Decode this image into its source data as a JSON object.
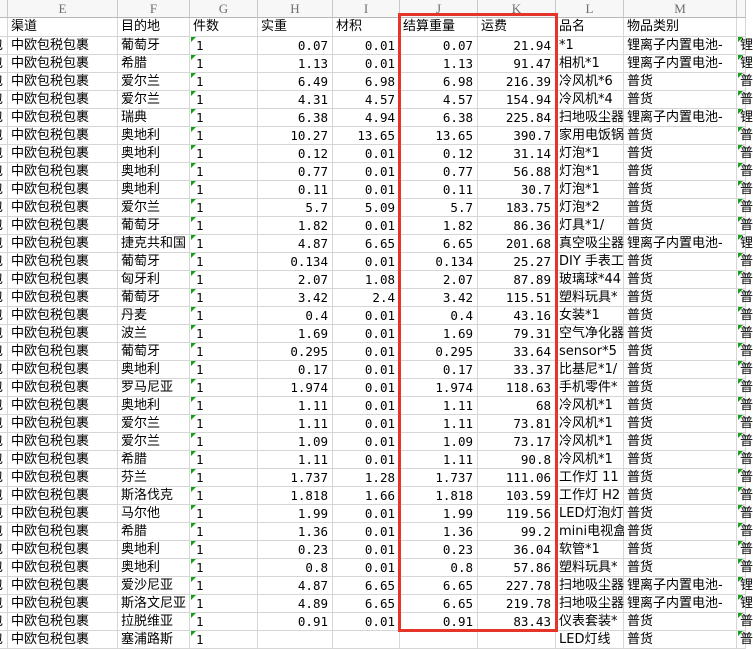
{
  "columns": {
    "letters": [
      "",
      "E",
      "F",
      "G",
      "H",
      "I",
      "J",
      "K",
      "L",
      "M",
      ""
    ]
  },
  "headers": {
    "channel": "渠道",
    "destination": "目的地",
    "quantity": "件数",
    "actual_weight": "实重",
    "volume": "材积",
    "settlement_weight": "结算重量",
    "freight": "运费",
    "product_name": "品名",
    "item_category": "物品类别"
  },
  "left_clipped_fragment": "包",
  "markers": {
    "triangle_meaning": "number-stored-as-text warning",
    "triangle_color": "#16a016"
  },
  "highlight": {
    "columns": "J-K",
    "color": "#e5342a"
  },
  "rows": [
    [
      "中欧包税包裹",
      "葡萄牙",
      "1",
      "0.07",
      "0.01",
      "0.07",
      "21.94",
      "*1",
      "锂离子内置电池-"
    ],
    [
      "中欧包税包裹",
      "希腊",
      "1",
      "1.13",
      "0.01",
      "1.13",
      "91.47",
      "相机*1",
      "锂离子内置电池-"
    ],
    [
      "中欧包税包裹",
      "爱尔兰",
      "1",
      "6.49",
      "6.98",
      "6.98",
      "216.39",
      "冷风机*6",
      "普货"
    ],
    [
      "中欧包税包裹",
      "爱尔兰",
      "1",
      "4.31",
      "4.57",
      "4.57",
      "154.94",
      "冷风机*4",
      "普货"
    ],
    [
      "中欧包税包裹",
      "瑞典",
      "1",
      "6.38",
      "4.94",
      "6.38",
      "225.84",
      "扫地吸尘器",
      "锂离子内置电池-"
    ],
    [
      "中欧包税包裹",
      "奥地利",
      "1",
      "10.27",
      "13.65",
      "13.65",
      "390.7",
      "家用电饭锅",
      "普货"
    ],
    [
      "中欧包税包裹",
      "奥地利",
      "1",
      "0.12",
      "0.01",
      "0.12",
      "31.14",
      "灯泡*1",
      "普货"
    ],
    [
      "中欧包税包裹",
      "奥地利",
      "1",
      "0.77",
      "0.01",
      "0.77",
      "56.88",
      "灯泡*1",
      "普货"
    ],
    [
      "中欧包税包裹",
      "奥地利",
      "1",
      "0.11",
      "0.01",
      "0.11",
      "30.7",
      "灯泡*1",
      "普货"
    ],
    [
      "中欧包税包裹",
      "爱尔兰",
      "1",
      "5.7",
      "5.09",
      "5.7",
      "183.75",
      "灯泡*2",
      "普货"
    ],
    [
      "中欧包税包裹",
      "葡萄牙",
      "1",
      "1.82",
      "0.01",
      "1.82",
      "86.36",
      "灯具*1/",
      "普货"
    ],
    [
      "中欧包税包裹",
      "捷克共和国",
      "1",
      "4.87",
      "6.65",
      "6.65",
      "201.68",
      "真空吸尘器",
      "锂离子内置电池-"
    ],
    [
      "中欧包税包裹",
      "葡萄牙",
      "1",
      "0.134",
      "0.01",
      "0.134",
      "25.27",
      "DIY 手表工",
      "普货"
    ],
    [
      "中欧包税包裹",
      "匈牙利",
      "1",
      "2.07",
      "1.08",
      "2.07",
      "87.89",
      "玻璃球*44",
      "普货"
    ],
    [
      "中欧包税包裹",
      "葡萄牙",
      "1",
      "3.42",
      "2.4",
      "3.42",
      "115.51",
      "塑料玩具*",
      "普货"
    ],
    [
      "中欧包税包裹",
      "丹麦",
      "1",
      "0.4",
      "0.01",
      "0.4",
      "43.16",
      "女装*1",
      "普货"
    ],
    [
      "中欧包税包裹",
      "波兰",
      "1",
      "1.69",
      "0.01",
      "1.69",
      "79.31",
      "空气净化器",
      "普货"
    ],
    [
      "中欧包税包裹",
      "葡萄牙",
      "1",
      "0.295",
      "0.01",
      "0.295",
      "33.64",
      "sensor*5",
      "普货"
    ],
    [
      "中欧包税包裹",
      "奥地利",
      "1",
      "0.17",
      "0.01",
      "0.17",
      "33.37",
      "比基尼*1/",
      "普货"
    ],
    [
      "中欧包税包裹",
      "罗马尼亚",
      "1",
      "1.974",
      "0.01",
      "1.974",
      "118.63",
      "手机零件*",
      "普货"
    ],
    [
      "中欧包税包裹",
      "奥地利",
      "1",
      "1.11",
      "0.01",
      "1.11",
      "68",
      "冷风机*1",
      "普货"
    ],
    [
      "中欧包税包裹",
      "爱尔兰",
      "1",
      "1.11",
      "0.01",
      "1.11",
      "73.81",
      "冷风机*1",
      "普货"
    ],
    [
      "中欧包税包裹",
      "爱尔兰",
      "1",
      "1.09",
      "0.01",
      "1.09",
      "73.17",
      "冷风机*1",
      "普货"
    ],
    [
      "中欧包税包裹",
      "希腊",
      "1",
      "1.11",
      "0.01",
      "1.11",
      "90.8",
      "冷风机*1",
      "普货"
    ],
    [
      "中欧包税包裹",
      "芬兰",
      "1",
      "1.737",
      "1.28",
      "1.737",
      "111.06",
      "工作灯 11",
      "普货"
    ],
    [
      "中欧包税包裹",
      "斯洛伐克",
      "1",
      "1.818",
      "1.66",
      "1.818",
      "103.59",
      "工作灯 H2",
      "普货"
    ],
    [
      "中欧包税包裹",
      "马尔他",
      "1",
      "1.99",
      "0.01",
      "1.99",
      "119.56",
      "LED灯泡灯",
      "普货"
    ],
    [
      "中欧包税包裹",
      "希腊",
      "1",
      "1.36",
      "0.01",
      "1.36",
      "99.2",
      "mini电视盒",
      "普货"
    ],
    [
      "中欧包税包裹",
      "奥地利",
      "1",
      "0.23",
      "0.01",
      "0.23",
      "36.04",
      "软管*1",
      "普货"
    ],
    [
      "中欧包税包裹",
      "奥地利",
      "1",
      "0.8",
      "0.01",
      "0.8",
      "57.86",
      "塑料玩具*",
      "普货"
    ],
    [
      "中欧包税包裹",
      "爱沙尼亚",
      "1",
      "4.87",
      "6.65",
      "6.65",
      "227.78",
      "扫地吸尘器",
      "锂离子内置电池-"
    ],
    [
      "中欧包税包裹",
      "斯洛文尼亚",
      "1",
      "4.89",
      "6.65",
      "6.65",
      "219.78",
      "扫地吸尘器",
      "锂离子内置电池-"
    ],
    [
      "中欧包税包裹",
      "拉脱维亚",
      "1",
      "0.91",
      "0.01",
      "0.91",
      "83.43",
      "仪表套装*",
      "普货"
    ],
    [
      "中欧包税包裹",
      "塞浦路斯",
      "1",
      "",
      "",
      "",
      "",
      "LED灯线",
      "普货"
    ]
  ]
}
